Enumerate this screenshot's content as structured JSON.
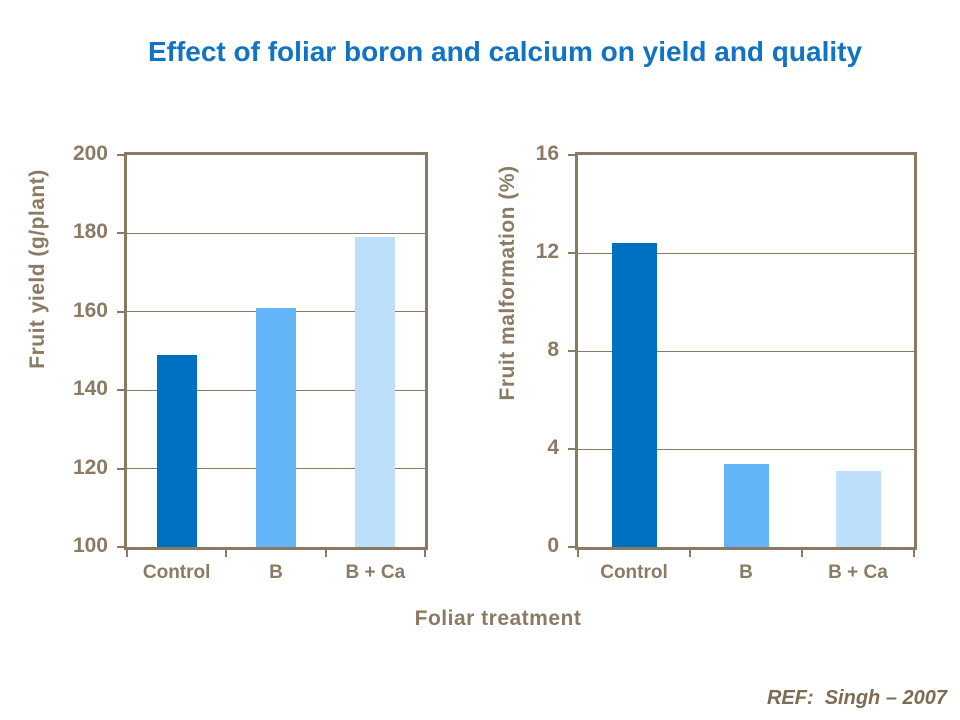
{
  "slide": {
    "title": "Effect of foliar boron and calcium on yield and quality",
    "reference": "REF:  Singh – 2007"
  },
  "colors": {
    "title_text": "#1173C4",
    "axis_line": "#8A7963",
    "axis_text": "#8C7B64",
    "reference_text": "#7C6C54",
    "bar_control": "#0070C0",
    "bar_b": "#64B5F8",
    "bar_b_ca": "#BDDFFA"
  },
  "x_axis_title": "Foliar treatment",
  "chart_data": [
    {
      "type": "bar",
      "title": "",
      "categories": [
        "Control",
        "B",
        "B + Ca"
      ],
      "values": [
        149,
        161,
        179
      ],
      "xlabel": "Foliar treatment",
      "ylabel": "Fruit yield (g/plant)",
      "ylim": [
        100,
        200
      ],
      "ytick_step": 20,
      "yticks": [
        100,
        120,
        140,
        160,
        180,
        200
      ],
      "grid": true,
      "legend": false,
      "bar_colors": [
        "#0070C0",
        "#64B5F8",
        "#BDDFFA"
      ]
    },
    {
      "type": "bar",
      "title": "",
      "categories": [
        "Control",
        "B",
        "B + Ca"
      ],
      "values": [
        12.4,
        3.4,
        3.1
      ],
      "xlabel": "Foliar treatment",
      "ylabel": "Fruit malformation (%)",
      "ylim": [
        0,
        16
      ],
      "ytick_step": 4,
      "yticks": [
        0,
        4,
        8,
        12,
        16
      ],
      "grid": true,
      "legend": false,
      "bar_colors": [
        "#0070C0",
        "#64B5F8",
        "#BDDFFA"
      ]
    }
  ]
}
